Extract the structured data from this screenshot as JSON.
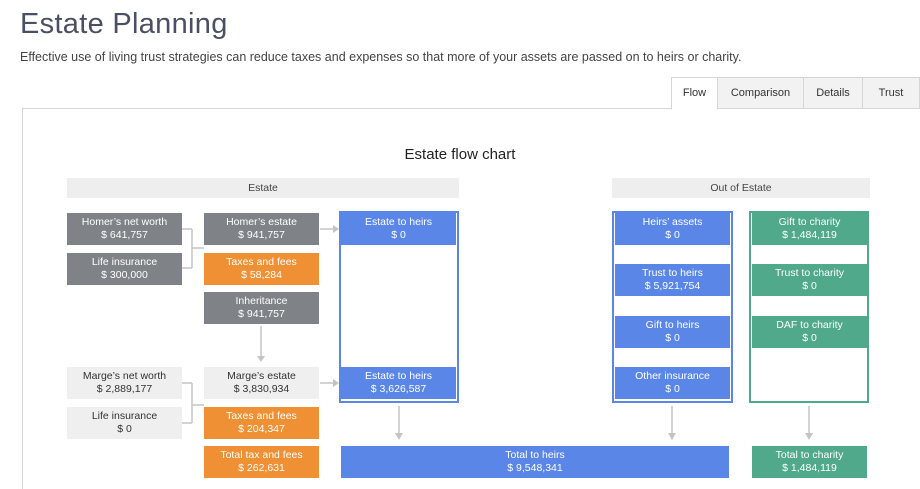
{
  "header": {
    "title": "Estate Planning",
    "description": "Effective use of living trust strategies can reduce taxes and expenses so that more of your assets are passed on to heirs or charity."
  },
  "tabs": [
    {
      "label": "Flow",
      "active": true
    },
    {
      "label": "Comparison",
      "active": false
    },
    {
      "label": "Details",
      "active": false
    },
    {
      "label": "Trust",
      "active": false
    }
  ],
  "chart": {
    "title": "Estate flow chart",
    "estate_header": "Estate",
    "out_of_estate_header": "Out of Estate"
  },
  "homer": {
    "net_worth": {
      "label": "Homer’s net worth",
      "value": "$ 641,757"
    },
    "life_insurance": {
      "label": "Life insurance",
      "value": "$ 300,000"
    },
    "estate": {
      "label": "Homer’s estate",
      "value": "$ 941,757"
    },
    "taxes": {
      "label": "Taxes and fees",
      "value": "$ 58,284"
    },
    "inheritance": {
      "label": "Inheritance",
      "value": "$ 941,757"
    },
    "estate_to_heirs": {
      "label": "Estate to heirs",
      "value": "$ 0"
    }
  },
  "marge": {
    "net_worth": {
      "label": "Marge’s net worth",
      "value": "$ 2,889,177"
    },
    "life_insurance": {
      "label": "Life insurance",
      "value": "$ 0"
    },
    "estate": {
      "label": "Marge’s estate",
      "value": "$ 3,830,934"
    },
    "taxes": {
      "label": "Taxes and fees",
      "value": "$ 204,347"
    },
    "estate_to_heirs": {
      "label": "Estate to heirs",
      "value": "$ 3,626,587"
    }
  },
  "total_tax": {
    "label": "Total tax and fees",
    "value": "$ 262,631"
  },
  "heirs_column": {
    "assets": {
      "label": "Heirs’ assets",
      "value": "$ 0"
    },
    "trust": {
      "label": "Trust to heirs",
      "value": "$ 5,921,754"
    },
    "gift": {
      "label": "Gift to heirs",
      "value": "$ 0"
    },
    "other_insurance": {
      "label": "Other insurance",
      "value": "$ 0"
    }
  },
  "charity_column": {
    "gift": {
      "label": "Gift to charity",
      "value": "$ 1,484,119"
    },
    "trust": {
      "label": "Trust to charity",
      "value": "$ 0"
    },
    "daf": {
      "label": "DAF to charity",
      "value": "$ 0"
    }
  },
  "totals": {
    "heirs": {
      "label": "Total to heirs",
      "value": "$ 9,548,341"
    },
    "charity": {
      "label": "Total to charity",
      "value": "$ 1,484,119"
    }
  },
  "colors": {
    "gray": "#7f8387",
    "orange": "#ee9033",
    "blue": "#5a86e8",
    "green": "#4fa98a",
    "title": "#4a4f63"
  }
}
